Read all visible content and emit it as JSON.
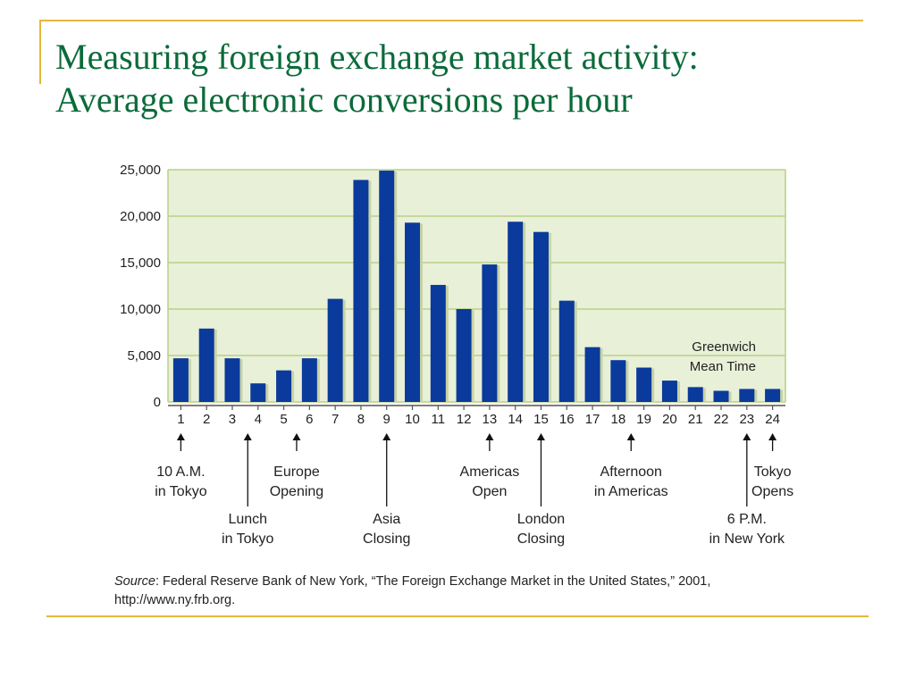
{
  "title": {
    "line1": "Measuring foreign exchange market activity:",
    "line2": "Average electronic conversions per hour"
  },
  "colors": {
    "accent_rule": "#e5b73b",
    "title": "#0b6b3a",
    "plot_bg": "#e9f0d8",
    "gridline": "#b9cf87",
    "bar": "#0a3a9c",
    "bar_shadow": "#c7d3a6"
  },
  "chart_data": {
    "type": "bar",
    "categories": [
      "1",
      "2",
      "3",
      "4",
      "5",
      "6",
      "7",
      "8",
      "9",
      "10",
      "11",
      "12",
      "13",
      "14",
      "15",
      "16",
      "17",
      "18",
      "19",
      "20",
      "21",
      "22",
      "23",
      "24"
    ],
    "values": [
      4700,
      7900,
      4700,
      2000,
      3400,
      4700,
      11100,
      23900,
      24900,
      19300,
      12600,
      10000,
      14800,
      19400,
      18300,
      10900,
      5900,
      4500,
      3700,
      2300,
      1600,
      1200,
      1400,
      1400
    ],
    "ylim": [
      0,
      25000
    ],
    "y_ticks": [
      "0",
      "5,000",
      "10,000",
      "15,000",
      "20,000",
      "25,000"
    ],
    "y_tick_values": [
      0,
      5000,
      10000,
      15000,
      20000,
      25000
    ],
    "grid": true,
    "xlabel": "",
    "ylabel": "",
    "axis_note": [
      "Greenwich",
      "Mean Time"
    ],
    "annotations": [
      {
        "hour": 1,
        "lines": [
          "10 A.M.",
          "in Tokyo"
        ],
        "row": "upper"
      },
      {
        "hour": 3.6,
        "lines": [
          "Lunch",
          "in Tokyo"
        ],
        "row": "lower"
      },
      {
        "hour": 5.5,
        "lines": [
          "Europe",
          "Opening"
        ],
        "row": "upper"
      },
      {
        "hour": 9,
        "lines": [
          "Asia",
          "Closing"
        ],
        "row": "lower"
      },
      {
        "hour": 13,
        "lines": [
          "Americas",
          "Open"
        ],
        "row": "upper"
      },
      {
        "hour": 15,
        "lines": [
          "London",
          "Closing"
        ],
        "row": "lower"
      },
      {
        "hour": 18.5,
        "lines": [
          "Afternoon",
          "in Americas"
        ],
        "row": "upper"
      },
      {
        "hour": 23,
        "lines": [
          "6 P.M.",
          "in New York"
        ],
        "row": "lower"
      },
      {
        "hour": 24,
        "lines": [
          "Tokyo",
          "Opens"
        ],
        "row": "upper"
      }
    ]
  },
  "source": {
    "label": "Source",
    "text": ": Federal Reserve Bank of New York, “The Foreign Exchange Market in the United States,” 2001, http://www.ny.frb.org."
  }
}
